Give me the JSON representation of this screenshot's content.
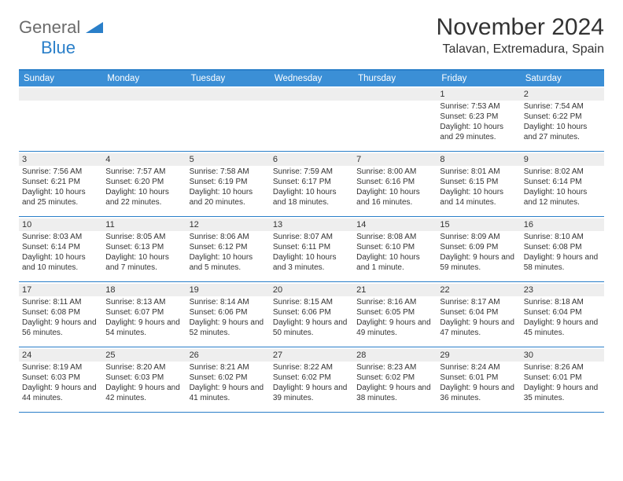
{
  "logo": {
    "text_general": "General",
    "text_blue": "Blue"
  },
  "title": "November 2024",
  "location": "Talavan, Extremadura, Spain",
  "colors": {
    "header_bg": "#3b8fd6",
    "border": "#2a7fc9",
    "daynum_bg": "#eeeeee",
    "text": "#333333",
    "logo_gray": "#6b6b6b",
    "logo_blue": "#2a7fc9"
  },
  "weekdays": [
    "Sunday",
    "Monday",
    "Tuesday",
    "Wednesday",
    "Thursday",
    "Friday",
    "Saturday"
  ],
  "weeks": [
    [
      null,
      null,
      null,
      null,
      null,
      {
        "n": "1",
        "sr": "7:53 AM",
        "ss": "6:23 PM",
        "dl": "10 hours and 29 minutes."
      },
      {
        "n": "2",
        "sr": "7:54 AM",
        "ss": "6:22 PM",
        "dl": "10 hours and 27 minutes."
      }
    ],
    [
      {
        "n": "3",
        "sr": "7:56 AM",
        "ss": "6:21 PM",
        "dl": "10 hours and 25 minutes."
      },
      {
        "n": "4",
        "sr": "7:57 AM",
        "ss": "6:20 PM",
        "dl": "10 hours and 22 minutes."
      },
      {
        "n": "5",
        "sr": "7:58 AM",
        "ss": "6:19 PM",
        "dl": "10 hours and 20 minutes."
      },
      {
        "n": "6",
        "sr": "7:59 AM",
        "ss": "6:17 PM",
        "dl": "10 hours and 18 minutes."
      },
      {
        "n": "7",
        "sr": "8:00 AM",
        "ss": "6:16 PM",
        "dl": "10 hours and 16 minutes."
      },
      {
        "n": "8",
        "sr": "8:01 AM",
        "ss": "6:15 PM",
        "dl": "10 hours and 14 minutes."
      },
      {
        "n": "9",
        "sr": "8:02 AM",
        "ss": "6:14 PM",
        "dl": "10 hours and 12 minutes."
      }
    ],
    [
      {
        "n": "10",
        "sr": "8:03 AM",
        "ss": "6:14 PM",
        "dl": "10 hours and 10 minutes."
      },
      {
        "n": "11",
        "sr": "8:05 AM",
        "ss": "6:13 PM",
        "dl": "10 hours and 7 minutes."
      },
      {
        "n": "12",
        "sr": "8:06 AM",
        "ss": "6:12 PM",
        "dl": "10 hours and 5 minutes."
      },
      {
        "n": "13",
        "sr": "8:07 AM",
        "ss": "6:11 PM",
        "dl": "10 hours and 3 minutes."
      },
      {
        "n": "14",
        "sr": "8:08 AM",
        "ss": "6:10 PM",
        "dl": "10 hours and 1 minute."
      },
      {
        "n": "15",
        "sr": "8:09 AM",
        "ss": "6:09 PM",
        "dl": "9 hours and 59 minutes."
      },
      {
        "n": "16",
        "sr": "8:10 AM",
        "ss": "6:08 PM",
        "dl": "9 hours and 58 minutes."
      }
    ],
    [
      {
        "n": "17",
        "sr": "8:11 AM",
        "ss": "6:08 PM",
        "dl": "9 hours and 56 minutes."
      },
      {
        "n": "18",
        "sr": "8:13 AM",
        "ss": "6:07 PM",
        "dl": "9 hours and 54 minutes."
      },
      {
        "n": "19",
        "sr": "8:14 AM",
        "ss": "6:06 PM",
        "dl": "9 hours and 52 minutes."
      },
      {
        "n": "20",
        "sr": "8:15 AM",
        "ss": "6:06 PM",
        "dl": "9 hours and 50 minutes."
      },
      {
        "n": "21",
        "sr": "8:16 AM",
        "ss": "6:05 PM",
        "dl": "9 hours and 49 minutes."
      },
      {
        "n": "22",
        "sr": "8:17 AM",
        "ss": "6:04 PM",
        "dl": "9 hours and 47 minutes."
      },
      {
        "n": "23",
        "sr": "8:18 AM",
        "ss": "6:04 PM",
        "dl": "9 hours and 45 minutes."
      }
    ],
    [
      {
        "n": "24",
        "sr": "8:19 AM",
        "ss": "6:03 PM",
        "dl": "9 hours and 44 minutes."
      },
      {
        "n": "25",
        "sr": "8:20 AM",
        "ss": "6:03 PM",
        "dl": "9 hours and 42 minutes."
      },
      {
        "n": "26",
        "sr": "8:21 AM",
        "ss": "6:02 PM",
        "dl": "9 hours and 41 minutes."
      },
      {
        "n": "27",
        "sr": "8:22 AM",
        "ss": "6:02 PM",
        "dl": "9 hours and 39 minutes."
      },
      {
        "n": "28",
        "sr": "8:23 AM",
        "ss": "6:02 PM",
        "dl": "9 hours and 38 minutes."
      },
      {
        "n": "29",
        "sr": "8:24 AM",
        "ss": "6:01 PM",
        "dl": "9 hours and 36 minutes."
      },
      {
        "n": "30",
        "sr": "8:26 AM",
        "ss": "6:01 PM",
        "dl": "9 hours and 35 minutes."
      }
    ]
  ],
  "labels": {
    "sunrise": "Sunrise:",
    "sunset": "Sunset:",
    "daylight": "Daylight:"
  }
}
